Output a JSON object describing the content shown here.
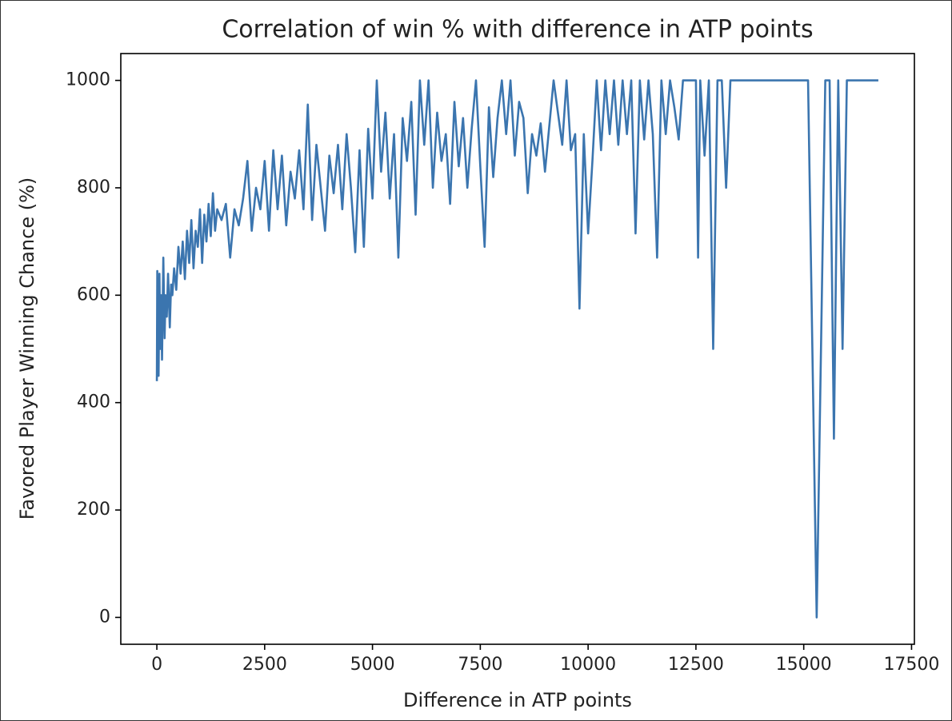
{
  "chart_data": {
    "type": "line",
    "title": "Correlation of win % with difference in ATP points",
    "x_label": "Difference in ATP points",
    "y_label": "Favored Player Winning Chance (%)",
    "color": "#3b75af",
    "xlim": [
      -836,
      17566
    ],
    "ylim": [
      -50,
      1050
    ],
    "xticks": [
      0,
      2500,
      5000,
      7500,
      10000,
      12500,
      15000,
      17500
    ],
    "yticks": [
      0,
      200,
      400,
      600,
      800,
      1000
    ],
    "x": [
      0,
      10,
      20,
      30,
      40,
      60,
      80,
      100,
      120,
      150,
      180,
      200,
      230,
      260,
      300,
      330,
      360,
      400,
      450,
      500,
      550,
      600,
      650,
      700,
      750,
      800,
      850,
      900,
      950,
      1000,
      1050,
      1100,
      1150,
      1200,
      1250,
      1300,
      1350,
      1400,
      1500,
      1600,
      1700,
      1800,
      1900,
      2000,
      2100,
      2200,
      2300,
      2400,
      2500,
      2600,
      2700,
      2800,
      2900,
      3000,
      3100,
      3200,
      3300,
      3400,
      3500,
      3600,
      3700,
      3800,
      3900,
      4000,
      4100,
      4200,
      4300,
      4400,
      4500,
      4600,
      4700,
      4800,
      4900,
      5000,
      5100,
      5200,
      5300,
      5400,
      5500,
      5600,
      5700,
      5800,
      5900,
      6000,
      6100,
      6200,
      6300,
      6400,
      6500,
      6600,
      6700,
      6800,
      6900,
      7000,
      7100,
      7200,
      7300,
      7400,
      7500,
      7600,
      7700,
      7800,
      7900,
      8000,
      8100,
      8200,
      8300,
      8400,
      8500,
      8600,
      8700,
      8800,
      8900,
      9000,
      9200,
      9400,
      9500,
      9600,
      9700,
      9800,
      9900,
      10000,
      10100,
      10200,
      10300,
      10400,
      10500,
      10600,
      10700,
      10800,
      10900,
      11000,
      11100,
      11200,
      11300,
      11400,
      11500,
      11600,
      11700,
      11800,
      11900,
      12000,
      12100,
      12200,
      12400,
      12500,
      12550,
      12600,
      12700,
      12800,
      12900,
      13000,
      13100,
      13200,
      13300,
      13500,
      14000,
      15000,
      15100,
      15300,
      15500,
      15600,
      15700,
      15800,
      15900,
      16000,
      16730
    ],
    "values": [
      440,
      645,
      480,
      620,
      450,
      640,
      500,
      600,
      480,
      670,
      520,
      600,
      560,
      640,
      540,
      620,
      600,
      650,
      610,
      690,
      640,
      700,
      630,
      720,
      660,
      740,
      650,
      720,
      690,
      760,
      660,
      750,
      700,
      770,
      710,
      790,
      720,
      760,
      740,
      770,
      670,
      760,
      730,
      780,
      850,
      720,
      800,
      760,
      850,
      720,
      870,
      760,
      860,
      730,
      830,
      780,
      870,
      760,
      955,
      740,
      880,
      800,
      720,
      860,
      790,
      880,
      760,
      900,
      800,
      680,
      870,
      690,
      910,
      780,
      1000,
      830,
      940,
      780,
      900,
      670,
      930,
      850,
      960,
      750,
      1000,
      880,
      1000,
      800,
      940,
      850,
      900,
      770,
      960,
      840,
      930,
      800,
      910,
      1000,
      840,
      690,
      950,
      820,
      930,
      1000,
      900,
      1000,
      860,
      960,
      930,
      790,
      900,
      860,
      920,
      830,
      1000,
      880,
      1000,
      870,
      900,
      575,
      900,
      715,
      850,
      1000,
      870,
      1000,
      900,
      1000,
      880,
      1000,
      900,
      1000,
      715,
      1000,
      890,
      1000,
      900,
      670,
      1000,
      900,
      1000,
      950,
      890,
      1000,
      1000,
      1000,
      670,
      1000,
      860,
      1000,
      500,
      1000,
      1000,
      800,
      1000,
      1000,
      1000,
      1000,
      1000,
      0,
      1000,
      1000,
      333,
      1000,
      500,
      1000,
      1000
    ]
  }
}
